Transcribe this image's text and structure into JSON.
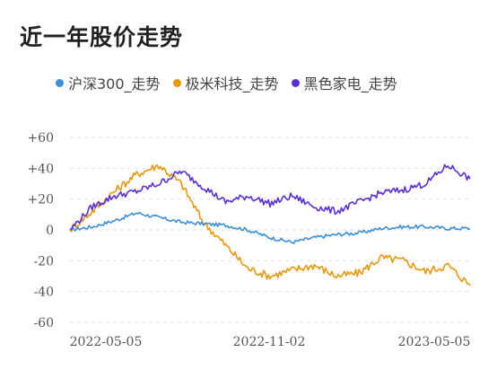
{
  "title": "近一年股价走势",
  "colors": {
    "hushen300": "#3b8fd9",
    "jimi": "#e8980f",
    "heise": "#5b2fd6"
  },
  "chart_data": {
    "type": "line",
    "title": "近一年股价走势",
    "xlabel": "",
    "ylabel": "",
    "ylim": [
      -60,
      60
    ],
    "yticks": [
      "+60",
      "+40",
      "+20",
      "0",
      "-20",
      "-40",
      "-60"
    ],
    "ytick_values": [
      60,
      40,
      20,
      0,
      -20,
      -40,
      -60
    ],
    "xticks": [
      "2022-05-05",
      "2022-11-02",
      "2023-05-05"
    ],
    "grid": "horizontal dashed",
    "legend_position": "top",
    "x": [
      "2022-05-05",
      "2022-05-26",
      "2022-06-16",
      "2022-07-07",
      "2022-07-28",
      "2022-08-18",
      "2022-09-08",
      "2022-09-29",
      "2022-10-20",
      "2022-11-02",
      "2022-11-23",
      "2022-12-14",
      "2023-01-04",
      "2023-01-25",
      "2023-02-15",
      "2023-03-08",
      "2023-03-29",
      "2023-04-19",
      "2023-05-05"
    ],
    "series": [
      {
        "name": "沪深300_走势",
        "color": "#3b8fd9",
        "values": [
          0,
          2,
          6,
          11,
          8,
          5,
          4,
          3,
          0,
          -5,
          -8,
          -5,
          -3,
          -2,
          1,
          2,
          2,
          1,
          1
        ]
      },
      {
        "name": "极米科技_走势",
        "color": "#e8980f",
        "values": [
          0,
          12,
          25,
          36,
          42,
          30,
          5,
          -10,
          -25,
          -30,
          -26,
          -23,
          -30,
          -28,
          -18,
          -20,
          -27,
          -23,
          -36
        ]
      },
      {
        "name": "黑色家电_走势",
        "color": "#5b2fd6",
        "values": [
          0,
          15,
          22,
          25,
          30,
          38,
          28,
          18,
          22,
          17,
          22,
          15,
          12,
          18,
          24,
          26,
          30,
          42,
          33
        ]
      }
    ]
  }
}
